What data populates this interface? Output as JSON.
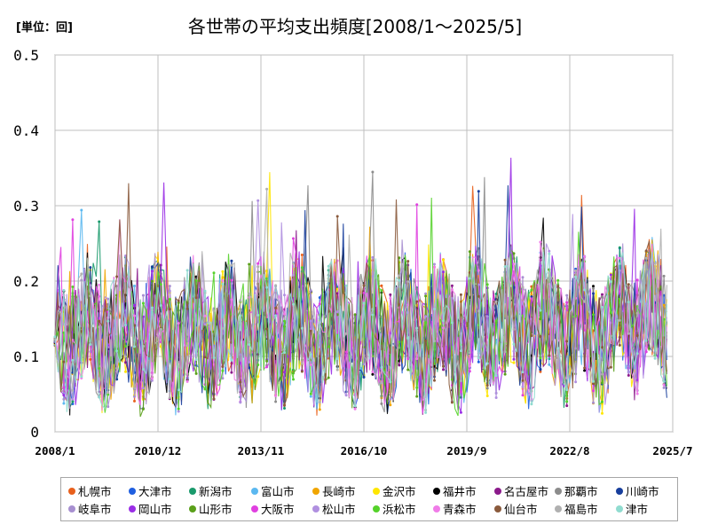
{
  "header": {
    "unit_label": "[単位：回]",
    "title": "各世帯の平均支出頻度[2008/1～2025/5]"
  },
  "chart_data": {
    "type": "line",
    "title": "各世帯の平均支出頻度[2008/1～2025/5]",
    "xlabel": "",
    "ylabel": "[単位：回]",
    "ylim": [
      0,
      0.5
    ],
    "y_ticks": [
      "0",
      "0.1",
      "0.2",
      "0.3",
      "0.4",
      "0.5"
    ],
    "x_ticks": [
      "2008/1",
      "2010/12",
      "2013/11",
      "2016/10",
      "2019/9",
      "2022/8",
      "2025/7"
    ],
    "grid": true,
    "legend_position": "bottom",
    "series": [
      {
        "name": "札幌市",
        "color": "#e8601c",
        "seed": 11
      },
      {
        "name": "大津市",
        "color": "#1f5fe0",
        "seed": 23
      },
      {
        "name": "新潟市",
        "color": "#1a9a6c",
        "seed": 37
      },
      {
        "name": "富山市",
        "color": "#5bb8f0",
        "seed": 41
      },
      {
        "name": "長崎市",
        "color": "#f0a500",
        "seed": 53
      },
      {
        "name": "金沢市",
        "color": "#ffe600",
        "seed": 67
      },
      {
        "name": "福井市",
        "color": "#000000",
        "seed": 71
      },
      {
        "name": "名古屋市",
        "color": "#8b1a8b",
        "seed": 83
      },
      {
        "name": "那覇市",
        "color": "#8c8c8c",
        "seed": 97
      },
      {
        "name": "川崎市",
        "color": "#173e9c",
        "seed": 101
      },
      {
        "name": "岐阜市",
        "color": "#a78fd0",
        "seed": 113
      },
      {
        "name": "岡山市",
        "color": "#9a2ee6",
        "seed": 127
      },
      {
        "name": "山形市",
        "color": "#5aa01a",
        "seed": 131
      },
      {
        "name": "大阪市",
        "color": "#e040e0",
        "seed": 149
      },
      {
        "name": "松山市",
        "color": "#b090e0",
        "seed": 151
      },
      {
        "name": "浜松市",
        "color": "#55d22a",
        "seed": 163
      },
      {
        "name": "青森市",
        "color": "#f07ce8",
        "seed": 173
      },
      {
        "name": "仙台市",
        "color": "#8a5a3c",
        "seed": 181
      },
      {
        "name": "福島市",
        "color": "#b0b0b0",
        "seed": 191
      },
      {
        "name": "津市",
        "color": "#90dcd0",
        "seed": 199
      }
    ]
  }
}
